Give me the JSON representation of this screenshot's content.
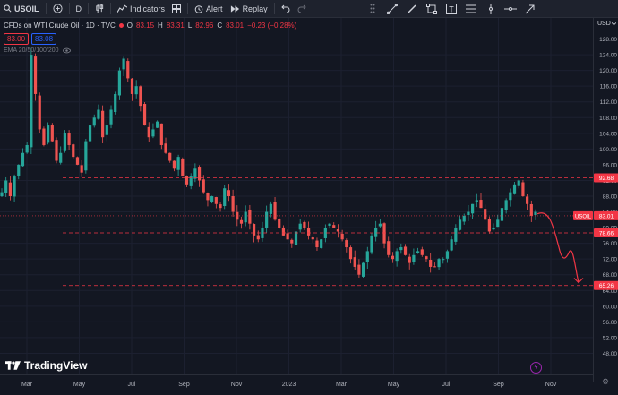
{
  "toolbar": {
    "symbol": "USOIL",
    "interval": "D",
    "indicators": "Indicators",
    "alert": "Alert",
    "replay": "Replay"
  },
  "legend": {
    "title": "CFDs on WTI Crude Oil · 1D · TVC",
    "open_k": "O",
    "open_v": "83.15",
    "high_k": "H",
    "high_v": "83.31",
    "low_k": "L",
    "low_v": "82.96",
    "close_k": "C",
    "close_v": "83.01",
    "change": "−0.23 (−0.28%)"
  },
  "quote": {
    "sell": "83.00",
    "buy": "83.08"
  },
  "ema_label": "EMA 20/50/100/200",
  "currency": "USD",
  "brand": "TradingView",
  "colors": {
    "up": "#26a69a",
    "down": "#ef5350",
    "bg": "#131722",
    "accent": "#f23645",
    "line": "#f23645"
  },
  "chart_data": {
    "type": "candlestick",
    "ylim": [
      44,
      132
    ],
    "y_ticks": [
      "128.00",
      "124.00",
      "120.00",
      "116.00",
      "112.00",
      "108.00",
      "104.00",
      "100.00",
      "96.00",
      "92.00",
      "88.00",
      "84.00",
      "80.00",
      "76.00",
      "72.00",
      "68.00",
      "64.00",
      "60.00",
      "56.00",
      "52.00",
      "48.00"
    ],
    "x_ticks": [
      "Mar",
      "May",
      "Jul",
      "Sep",
      "Nov",
      "2023",
      "Mar",
      "May",
      "Jul",
      "Sep",
      "Nov"
    ],
    "levels": [
      {
        "price": 92.68,
        "label": "92.68"
      },
      {
        "price": 78.66,
        "label": "78.66"
      },
      {
        "price": 65.26,
        "label": "65.26"
      }
    ],
    "current": {
      "price": 83.01,
      "label": "83.01",
      "tag": "USOIL"
    },
    "closes": [
      89,
      92,
      88,
      93,
      96,
      99,
      101,
      124,
      114,
      105,
      101,
      106,
      102,
      97,
      99,
      104,
      101,
      98,
      96,
      94,
      102,
      106,
      108,
      110,
      103,
      106,
      110,
      114,
      120,
      123,
      118,
      114,
      116,
      111,
      106,
      103,
      105,
      107,
      101,
      99,
      97,
      95,
      98,
      93,
      91,
      93,
      95,
      92,
      89,
      87,
      88,
      86,
      85,
      90,
      88,
      84,
      82,
      81,
      84,
      81,
      78,
      77,
      80,
      84,
      86,
      82,
      80,
      78,
      77,
      76,
      79,
      81,
      80,
      78,
      77,
      75,
      77,
      80,
      81,
      80,
      79,
      77,
      75,
      72,
      70,
      68,
      71,
      74,
      78,
      80,
      81,
      76,
      73,
      72,
      74,
      75,
      73,
      71,
      73,
      74,
      73,
      72,
      70,
      70,
      72,
      72,
      74,
      77,
      80,
      82,
      83,
      84,
      86,
      87,
      85,
      82,
      79,
      80,
      82,
      85,
      87,
      89,
      91,
      92,
      88,
      86,
      83,
      84
    ]
  }
}
